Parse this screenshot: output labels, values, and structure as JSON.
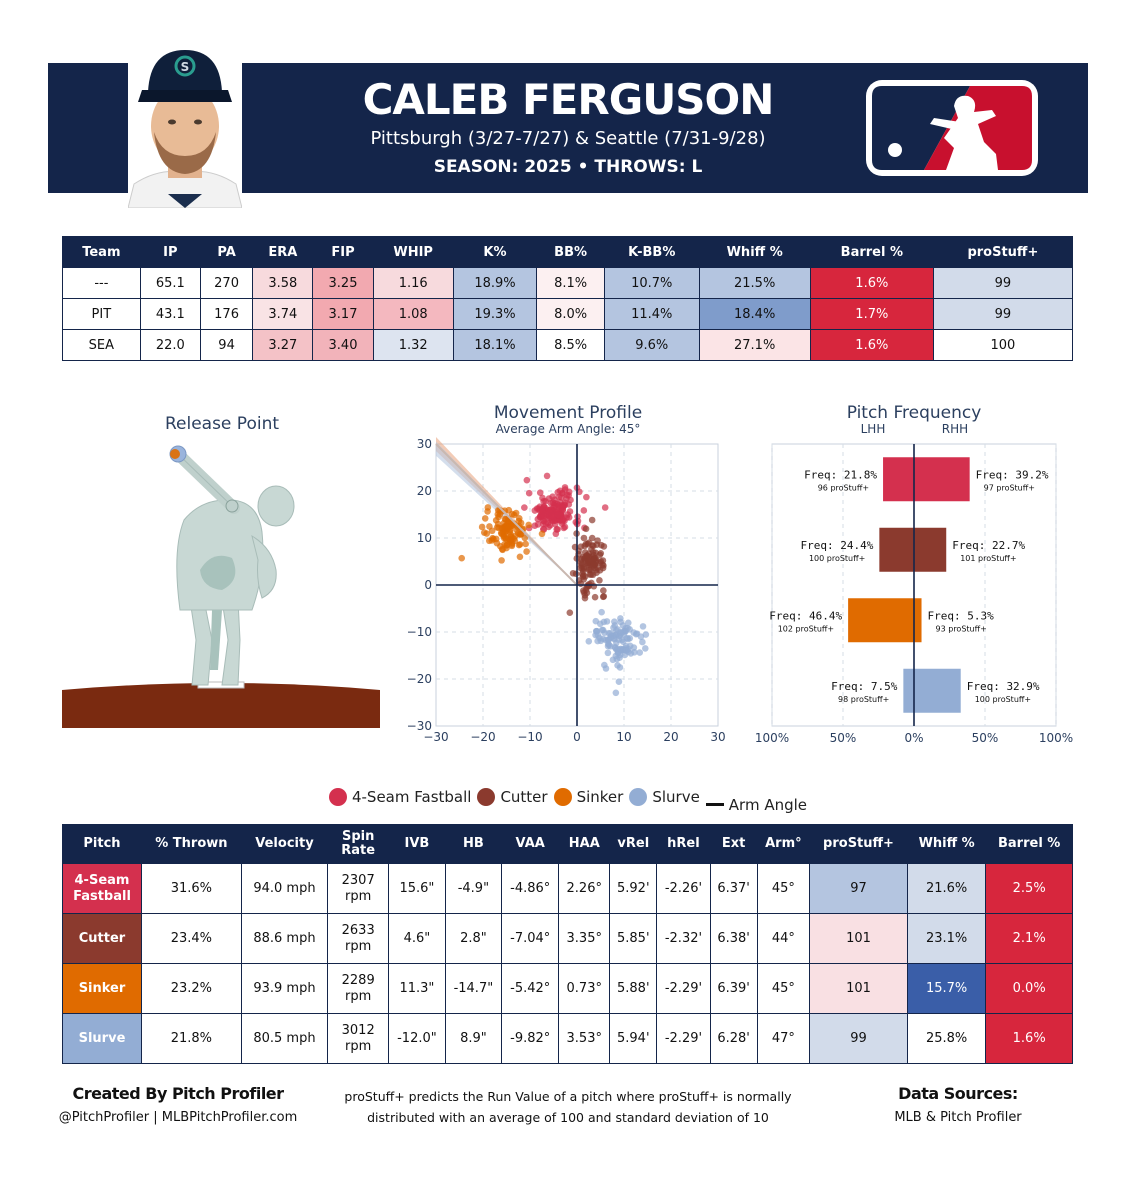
{
  "header": {
    "name": "CALEB FERGUSON",
    "teams": "Pittsburgh (3/27-7/27) & Seattle (7/31-9/28)",
    "season_line": "SEASON: 2025 • THROWS: L"
  },
  "colors": {
    "navy": "#14254a",
    "four_seam": "#d4304e",
    "cutter": "#8b3a2e",
    "sinker": "#e06b00",
    "slurve": "#93add4",
    "mlb_red": "#c8102e"
  },
  "stats_table": {
    "headers": [
      "Team",
      "IP",
      "PA",
      "ERA",
      "FIP",
      "WHIP",
      "K%",
      "BB%",
      "K-BB%",
      "Whiff %",
      "Barrel %",
      "proStuff+"
    ],
    "rows": [
      {
        "cells": [
          "---",
          "65.1",
          "270",
          "3.58",
          "3.25",
          "1.16",
          "18.9%",
          "8.1%",
          "10.7%",
          "21.5%",
          "1.6%",
          "99"
        ],
        "colors": [
          "#ffffff",
          "#ffffff",
          "#ffffff",
          "#f7dadd",
          "#f2a9b0",
          "#f7dadd",
          "#b4c5e0",
          "#fcf0f1",
          "#b4c5e0",
          "#b4c5e0",
          "#d7263d",
          "#d2dbea"
        ]
      },
      {
        "cells": [
          "PIT",
          "43.1",
          "176",
          "3.74",
          "3.17",
          "1.08",
          "19.3%",
          "8.0%",
          "11.4%",
          "18.4%",
          "1.7%",
          "99"
        ],
        "colors": [
          "#ffffff",
          "#ffffff",
          "#ffffff",
          "#f9e3e5",
          "#f2a9b0",
          "#f4b8bf",
          "#b4c5e0",
          "#fcf0f1",
          "#b4c5e0",
          "#7f9ccb",
          "#d7263d",
          "#d2dbea"
        ]
      },
      {
        "cells": [
          "SEA",
          "22.0",
          "94",
          "3.27",
          "3.40",
          "1.32",
          "18.1%",
          "8.5%",
          "9.6%",
          "27.1%",
          "1.6%",
          "100"
        ],
        "colors": [
          "#ffffff",
          "#ffffff",
          "#ffffff",
          "#f4c2c7",
          "#f2b3ba",
          "#dde4f0",
          "#b4c5e0",
          "#ffffff",
          "#b4c5e0",
          "#fbe4e6",
          "#d7263d",
          "#ffffff"
        ]
      }
    ]
  },
  "plots": {
    "release": {
      "title": "Release Point"
    },
    "movement": {
      "title": "Movement Profile",
      "subtitle": "Average Arm Angle: 45°"
    },
    "frequency": {
      "title": "Pitch Frequency",
      "lhh": "LHH",
      "rhh": "RHH"
    }
  },
  "chart_data": [
    {
      "type": "scatter",
      "title": "Movement Profile",
      "subtitle": "Average Arm Angle: 45°",
      "xlim": [
        -30,
        30
      ],
      "ylim": [
        -30,
        30
      ],
      "xticks": [
        "−30",
        "−20",
        "−10",
        "0",
        "10",
        "20",
        "30"
      ],
      "yticks": [
        "30",
        "20",
        "10",
        "0",
        "−10",
        "−20",
        "−30"
      ],
      "arm_angle_deg": 45,
      "series": [
        {
          "name": "4-Seam Fastball",
          "color": "#d4304e",
          "center": [
            -4.9,
            15.6
          ],
          "spread": [
            2.8,
            2.3
          ],
          "n": 150
        },
        {
          "name": "Cutter",
          "color": "#8b3a2e",
          "center": [
            2.8,
            4.6
          ],
          "spread": [
            1.6,
            3.0
          ],
          "n": 110
        },
        {
          "name": "Sinker",
          "color": "#e06b00",
          "center": [
            -14.7,
            11.3
          ],
          "spread": [
            2.3,
            2.3
          ],
          "n": 110
        },
        {
          "name": "Slurve",
          "color": "#93add4",
          "center": [
            8.9,
            -12.0
          ],
          "spread": [
            2.8,
            2.7
          ],
          "n": 110
        }
      ]
    },
    {
      "type": "bar",
      "title": "Pitch Frequency",
      "x_ticks": [
        "100%",
        "50%",
        "0%",
        "50%",
        "100%"
      ],
      "categories": [
        "4-Seam Fastball",
        "Cutter",
        "Sinker",
        "Slurve"
      ],
      "series": [
        {
          "name": "LHH",
          "values": [
            21.8,
            24.4,
            46.4,
            7.5
          ],
          "stuff_labels": [
            "96 proStuff+",
            "100 proStuff+",
            "102 proStuff+",
            "98 proStuff+"
          ]
        },
        {
          "name": "RHH",
          "values": [
            39.2,
            22.7,
            5.3,
            32.9
          ],
          "stuff_labels": [
            "97 proStuff+",
            "101 proStuff+",
            "93 proStuff+",
            "100 proStuff+"
          ]
        }
      ],
      "freq_prefix": "Freq: ",
      "colors": [
        "#d4304e",
        "#8b3a2e",
        "#e06b00",
        "#93add4"
      ]
    }
  ],
  "legend": [
    {
      "label": "4-Seam Fastball",
      "color": "#d4304e",
      "kind": "dot"
    },
    {
      "label": "Cutter",
      "color": "#8b3a2e",
      "kind": "dot"
    },
    {
      "label": "Sinker",
      "color": "#e06b00",
      "kind": "dot"
    },
    {
      "label": "Slurve",
      "color": "#93add4",
      "kind": "dot"
    },
    {
      "label": "Arm Angle",
      "color": "#111111",
      "kind": "line"
    }
  ],
  "pitch_table": {
    "headers": [
      "Pitch",
      "% Thrown",
      "Velocity",
      "Spin Rate",
      "IVB",
      "HB",
      "VAA",
      "HAA",
      "vRel",
      "hRel",
      "Ext",
      "Arm°",
      "proStuff+",
      "Whiff %",
      "Barrel %"
    ],
    "rows": [
      {
        "pitch": "4-Seam Fastball",
        "pitch_color": "#d4304e",
        "cells": [
          "31.6%",
          "94.0 mph",
          "2307 rpm",
          "15.6\"",
          "-4.9\"",
          "-4.86°",
          "2.26°",
          "5.92'",
          "-2.26'",
          "6.37'",
          "45°",
          "97",
          "21.6%",
          "2.5%"
        ],
        "hl": {
          "stuff": "#b4c5e0",
          "whiff": "#d2dbea",
          "barrel": "#d7263d"
        }
      },
      {
        "pitch": "Cutter",
        "pitch_color": "#8b3a2e",
        "cells": [
          "23.4%",
          "88.6 mph",
          "2633 rpm",
          "4.6\"",
          "2.8\"",
          "-7.04°",
          "3.35°",
          "5.85'",
          "-2.32'",
          "6.38'",
          "44°",
          "101",
          "23.1%",
          "2.1%"
        ],
        "hl": {
          "stuff": "#f9e0e3",
          "whiff": "#d2dbea",
          "barrel": "#d7263d"
        }
      },
      {
        "pitch": "Sinker",
        "pitch_color": "#e06b00",
        "cells": [
          "23.2%",
          "93.9 mph",
          "2289 rpm",
          "11.3\"",
          "-14.7\"",
          "-5.42°",
          "0.73°",
          "5.88'",
          "-2.29'",
          "6.39'",
          "45°",
          "101",
          "15.7%",
          "0.0%"
        ],
        "hl": {
          "stuff": "#f9e0e3",
          "whiff": "#3a5ea8",
          "barrel": "#d7263d"
        }
      },
      {
        "pitch": "Slurve",
        "pitch_color": "#93add4",
        "cells": [
          "21.8%",
          "80.5 mph",
          "3012 rpm",
          "-12.0\"",
          "8.9\"",
          "-9.82°",
          "3.53°",
          "5.94'",
          "-2.29'",
          "6.28'",
          "47°",
          "99",
          "25.8%",
          "1.6%"
        ],
        "hl": {
          "stuff": "#d2dbea",
          "whiff": "#ffffff",
          "barrel": "#d7263d"
        }
      }
    ]
  },
  "footer": {
    "left_title": "Created By Pitch Profiler",
    "left_sub": "@PitchProfiler | MLBPitchProfiler.com",
    "mid_line1": "proStuff+ predicts the Run Value of a pitch where proStuff+ is normally",
    "mid_line2": "distributed with an average of 100 and standard deviation of 10",
    "right_title": "Data Sources:",
    "right_sub": "MLB & Pitch Profiler"
  }
}
